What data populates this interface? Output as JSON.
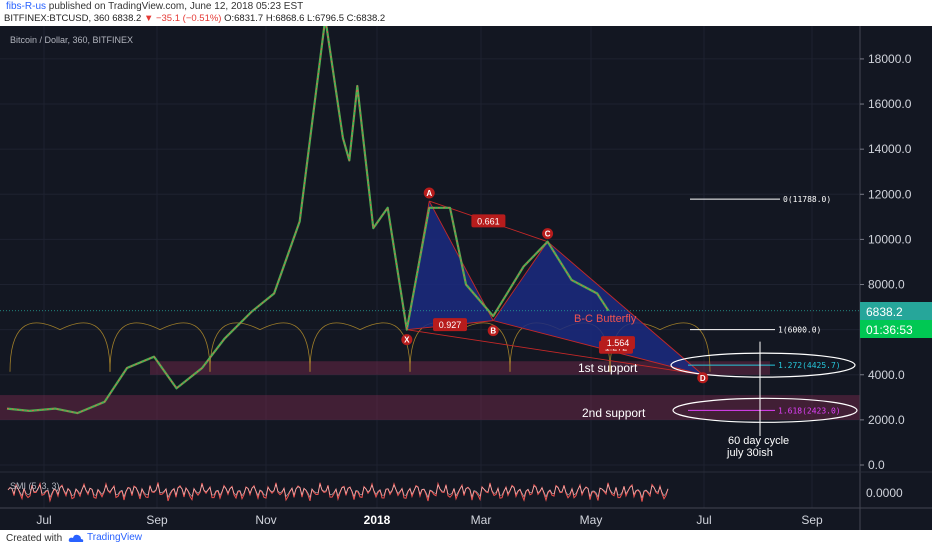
{
  "header": {
    "author": "fibs-R-us",
    "published": "published on TradingView.com, June 12, 2018 05:23 EST",
    "symbol": "BITFINEX:BTCUSD, 360",
    "last": "6838.2",
    "change": "▼ −35.1 (−0.51%)",
    "ohlc": "O:6831.7 H:6868.6 L:6796.5 C:6838.2"
  },
  "footer": {
    "created": "Created with",
    "brand": "TradingView"
  },
  "colors": {
    "bg": "#131722",
    "up": "#4caf50",
    "down": "#ef5350",
    "pattern": "#1b2a80",
    "support": "#7a2b4d",
    "label": "#b71c1c"
  },
  "chart_data": {
    "type": "line",
    "title": "Bitcoin / Dollar, 360, BITFINEX",
    "x": [
      "2018-06-01",
      "2018-06-15",
      "2018-07-01",
      "2018-07-15",
      "2018-08-01",
      "2018-08-15",
      "2018-09-01",
      "2018-09-15",
      "2018-10-01",
      "2018-10-15",
      "2018-11-01",
      "2018-11-15",
      "2018-12-01",
      "2018-12-17",
      "2018-12-28",
      "2018-01-01",
      "2018-01-06",
      "2018-01-16",
      "2018-01-25",
      "2018-02-06",
      "2018-02-20",
      "2018-03-05",
      "2018-03-15",
      "2018-04-01",
      "2018-04-20",
      "2018-05-05",
      "2018-05-20",
      "2018-06-05",
      "2018-06-12"
    ],
    "values": [
      2500,
      2400,
      2500,
      2300,
      2800,
      4300,
      4800,
      3400,
      4300,
      5600,
      6800,
      7600,
      10800,
      19800,
      14500,
      13500,
      16800,
      10500,
      11400,
      6000,
      11400,
      11400,
      8000,
      6600,
      8800,
      9900,
      8200,
      7600,
      6838
    ],
    "x_axis": {
      "ticks": [
        "Jul",
        "Sep",
        "Nov",
        "2018",
        "Mar",
        "May",
        "Jul",
        "Sep"
      ]
    },
    "y_axis": {
      "ticks": [
        "0.0",
        "2000.0",
        "4000.0",
        "6000.0",
        "8000.0",
        "10000.0",
        "12000.0",
        "14000.0",
        "16000.0",
        "18000.0"
      ],
      "ylim": [
        -500,
        19300
      ]
    },
    "last_price": "6838.2",
    "countdown": "01:36:53",
    "pattern": {
      "name": "B-C Butterfly",
      "points": [
        {
          "label": "X",
          "date": "2018-02-06",
          "price": 6000
        },
        {
          "label": "A",
          "date": "2018-02-20",
          "price": 11700
        },
        {
          "label": "B",
          "date": "2018-04-01",
          "price": 6400
        },
        {
          "label": "C",
          "date": "2018-05-05",
          "price": 9900
        },
        {
          "label": "D",
          "date": "2018-08-10",
          "price": 4000
        }
      ],
      "ratios": [
        "0.661",
        "0.927",
        "1.272",
        "1.564"
      ]
    },
    "fib_levels": [
      {
        "label": "0(11788.0)",
        "price": 11788
      },
      {
        "label": "1(6000.0)",
        "price": 6000
      },
      {
        "label": "1.272(4425.7)",
        "price": 4425.7
      },
      {
        "label": "1.618(2423.0)",
        "price": 2423.0
      }
    ],
    "zones": [
      {
        "label": "1st support",
        "from": 4000,
        "to": 4600
      },
      {
        "label": "2nd support",
        "from": 2000,
        "to": 3100
      }
    ],
    "annotations": {
      "cycle": "60 day cycle",
      "cycle_date": "july 30ish"
    },
    "oscillator": {
      "label": "SMI (5, 3, 3)",
      "ticks": [
        "0.0000"
      ]
    }
  }
}
